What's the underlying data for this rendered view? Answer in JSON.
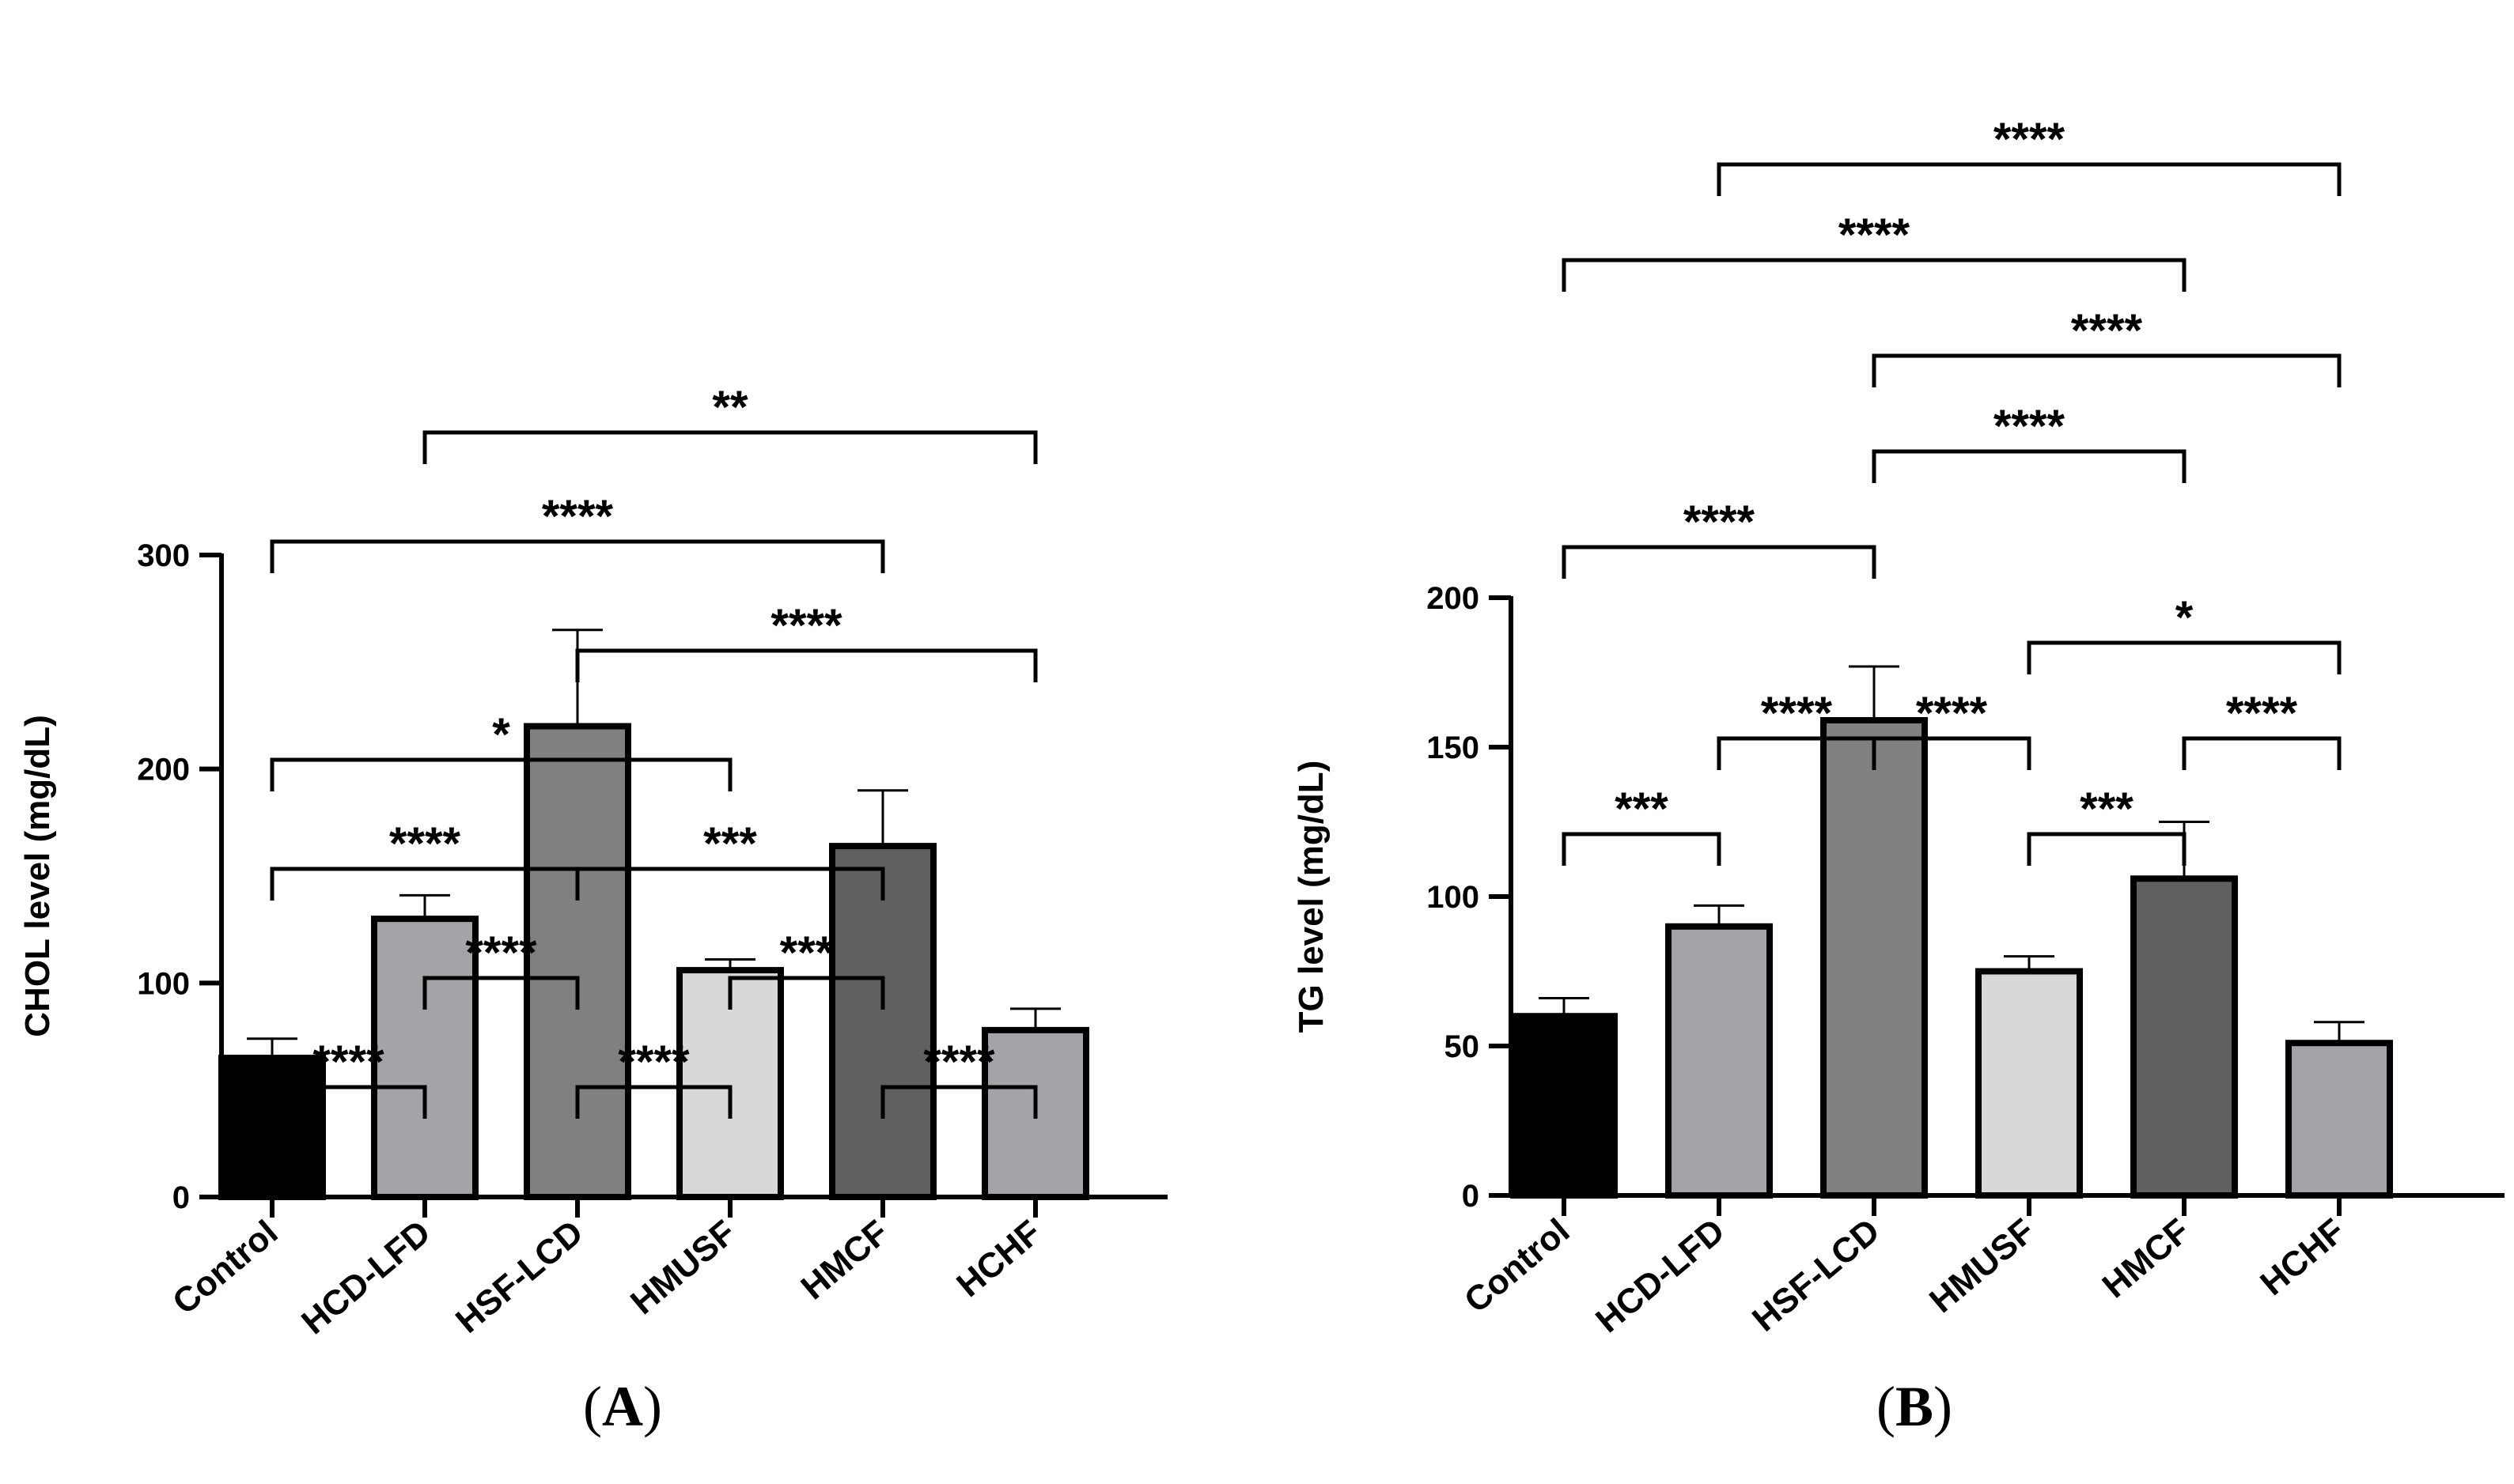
{
  "chart_data": [
    {
      "panel": "A",
      "type": "bar",
      "ylabel": "CHOL level (mg/dL)",
      "xlabel": "",
      "ylim": [
        0,
        300
      ],
      "yticks": [
        0,
        100,
        200,
        300
      ],
      "categories": [
        "Control",
        "HCD-LFD",
        "HSF-LCD",
        "HMUSF",
        "HMCF",
        "HCHF"
      ],
      "values": [
        65,
        130,
        220,
        106,
        164,
        78
      ],
      "errors": [
        9,
        11,
        45,
        5,
        26,
        10
      ],
      "bar_colors": [
        "#000000",
        "#a4a3a8",
        "#808080",
        "#d8d8d8",
        "#606060",
        "#a4a3a8"
      ],
      "significance": [
        {
          "from": 0,
          "to": 1,
          "label": "****",
          "level": 0
        },
        {
          "from": 1,
          "to": 2,
          "label": "****",
          "level": 1
        },
        {
          "from": 2,
          "to": 3,
          "label": "****",
          "level": 0
        },
        {
          "from": 3,
          "to": 4,
          "label": "***",
          "level": 1
        },
        {
          "from": 4,
          "to": 5,
          "label": "****",
          "level": 0
        },
        {
          "from": 0,
          "to": 2,
          "label": "****",
          "level": 2
        },
        {
          "from": 2,
          "to": 4,
          "label": "***",
          "level": 2
        },
        {
          "from": 0,
          "to": 3,
          "label": "*",
          "level": 3
        },
        {
          "from": 2,
          "to": 5,
          "label": "****",
          "level": 4
        },
        {
          "from": 0,
          "to": 4,
          "label": "****",
          "level": 5
        },
        {
          "from": 1,
          "to": 5,
          "label": "**",
          "level": 6
        }
      ]
    },
    {
      "panel": "B",
      "type": "bar",
      "ylabel": "TG level (mg/dL)",
      "xlabel": "",
      "ylim": [
        0,
        200
      ],
      "yticks": [
        0,
        50,
        100,
        150,
        200
      ],
      "categories": [
        "Control",
        "HCD-LFD",
        "HSF-LCD",
        "HMUSF",
        "HMCF",
        "HCHF"
      ],
      "values": [
        60,
        90,
        159,
        75,
        106,
        51
      ],
      "errors": [
        6,
        7,
        18,
        5,
        19,
        7
      ],
      "bar_colors": [
        "#000000",
        "#a4a3a8",
        "#808080",
        "#d8d8d8",
        "#606060",
        "#a4a3a8"
      ],
      "significance": [
        {
          "from": 0,
          "to": 1,
          "label": "***",
          "level": 0
        },
        {
          "from": 1,
          "to": 2,
          "label": "****",
          "level": 1
        },
        {
          "from": 2,
          "to": 3,
          "label": "****",
          "level": 1
        },
        {
          "from": 3,
          "to": 4,
          "label": "***",
          "level": 0
        },
        {
          "from": 4,
          "to": 5,
          "label": "****",
          "level": 1
        },
        {
          "from": 3,
          "to": 5,
          "label": "*",
          "level": 2
        },
        {
          "from": 0,
          "to": 2,
          "label": "****",
          "level": 3
        },
        {
          "from": 2,
          "to": 4,
          "label": "****",
          "level": 4
        },
        {
          "from": 2,
          "to": 5,
          "label": "****",
          "level": 5
        },
        {
          "from": 0,
          "to": 4,
          "label": "****",
          "level": 6
        },
        {
          "from": 1,
          "to": 5,
          "label": "****",
          "level": 7
        }
      ]
    }
  ],
  "panels": {
    "a": {
      "open": "(",
      "letter": "A",
      "close": ")"
    },
    "b": {
      "open": "(",
      "letter": "B",
      "close": ")"
    }
  }
}
